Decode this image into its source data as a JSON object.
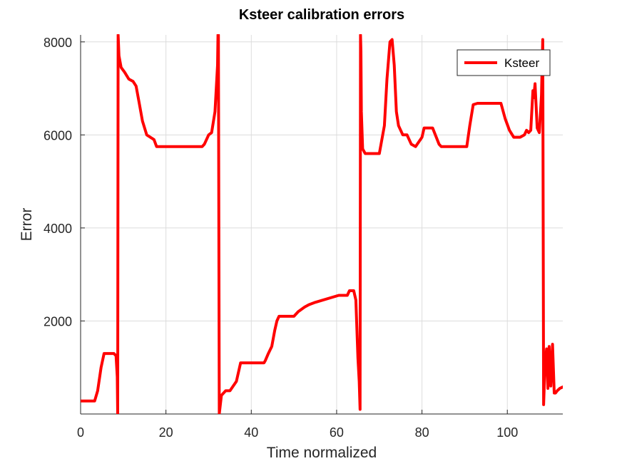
{
  "chart_data": {
    "type": "line",
    "title": "Ksteer calibration errors",
    "xlabel": "Time normalized",
    "ylabel": "Error",
    "xlim": [
      0,
      113
    ],
    "ylim": [
      0,
      8150
    ],
    "xticks": [
      0,
      20,
      40,
      60,
      80,
      100
    ],
    "yticks": [
      2000,
      4000,
      6000,
      8000
    ],
    "grid": true,
    "legend": {
      "position": "top-right",
      "entries": [
        "Ksteer"
      ]
    },
    "series": [
      {
        "name": "Ksteer",
        "color": "#ff0000",
        "x": [
          0,
          2.5,
          3.3,
          4.0,
          4.8,
          5.5,
          7.8,
          8.3,
          8.6,
          8.7,
          8.8,
          9.0,
          9.5,
          10.3,
          11.3,
          12.3,
          13.0,
          13.7,
          14.5,
          15.5,
          17.2,
          17.8,
          18.5,
          24.0,
          28.5,
          29.0,
          30.0,
          30.7,
          31.5,
          32.1,
          32.2,
          32.3,
          32.5,
          33.0,
          34.0,
          35.0,
          36.5,
          37.5,
          40.0,
          43.0,
          43.3,
          44.0,
          44.8,
          45.5,
          46.0,
          46.5,
          49.0,
          50.0,
          51.0,
          52.5,
          53.5,
          55.0,
          60.5,
          61.2,
          62.5,
          63.0,
          64.0,
          64.5,
          65.0,
          65.3,
          65.5,
          65.6,
          65.7,
          65.8,
          66.1,
          66.7,
          67.5,
          70.0,
          71.2,
          71.8,
          72.5,
          73.0,
          73.5,
          74.0,
          74.5,
          75.5,
          76.5,
          77.5,
          78.5,
          80.0,
          80.5,
          81.0,
          82.5,
          84.0,
          84.5,
          85.5,
          90.5,
          91.2,
          92.0,
          93.0,
          97.0,
          98.5,
          99.5,
          100.5,
          101.5,
          103.0,
          104.0,
          104.5,
          105.0,
          105.5,
          106.0,
          106.2,
          106.5,
          107.0,
          107.5,
          108.0,
          108.3,
          108.5,
          108.8,
          109.2,
          109.5,
          109.8,
          110.2,
          110.6,
          111.0,
          111.3,
          111.7,
          112.3,
          113.0
        ],
        "y": [
          280,
          280,
          280,
          500,
          1000,
          1300,
          1300,
          1250,
          800,
          0,
          8150,
          7700,
          7450,
          7350,
          7200,
          7150,
          7050,
          6700,
          6300,
          6000,
          5900,
          5750,
          5750,
          5750,
          5750,
          5800,
          6000,
          6050,
          6500,
          7500,
          8150,
          8150,
          0,
          400,
          500,
          500,
          700,
          1100,
          1100,
          1100,
          1150,
          1300,
          1450,
          1800,
          2000,
          2100,
          2100,
          2100,
          2200,
          2300,
          2350,
          2400,
          2550,
          2550,
          2550,
          2650,
          2650,
          2450,
          1200,
          700,
          100,
          8150,
          7800,
          6500,
          5700,
          5600,
          5600,
          5600,
          6200,
          7200,
          8000,
          8050,
          7500,
          6500,
          6200,
          6000,
          6000,
          5800,
          5750,
          5950,
          6150,
          6150,
          6150,
          5800,
          5750,
          5750,
          5750,
          6200,
          6650,
          6680,
          6680,
          6680,
          6350,
          6100,
          5950,
          5950,
          6000,
          6100,
          6050,
          6100,
          6950,
          6800,
          7100,
          6150,
          6050,
          6850,
          8050,
          200,
          1000,
          1400,
          550,
          1450,
          600,
          1500,
          450,
          450,
          500,
          550,
          580
        ]
      }
    ]
  }
}
